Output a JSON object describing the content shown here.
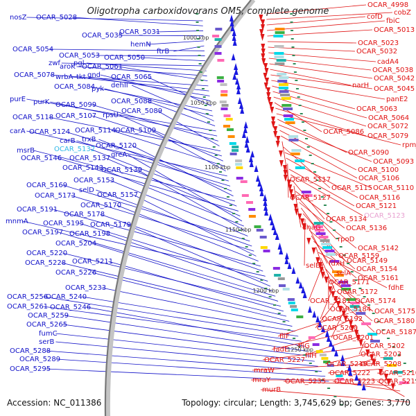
{
  "title": "Oligotropha carboxidovorans OM5, complete genome",
  "footer": {
    "accession": "Accession: NC_011386",
    "topology": "Topology: circular; Length: 3,745,629 bp; Genes: 3,770"
  },
  "colors": {
    "left_genes": "#1010c8",
    "right_genes": "#e01010",
    "highlight_left": "#30b8e8",
    "highlight_right": "#e8a0d0",
    "tick": "#2e8b57"
  },
  "kbp_marks": [
    "1000 kbp",
    "1050 kbp",
    "1100 kbp",
    "1150 kbp",
    "1200 kbp",
    "1250 kbp"
  ],
  "left_labels": [
    {
      "text": "nosZ"
    },
    {
      "text": "OCAR_5028"
    },
    {
      "text": "OCAR_5031"
    },
    {
      "text": "OCAR_5035"
    },
    {
      "text": "hemN"
    },
    {
      "text": "ftrB"
    },
    {
      "text": "OCAR_5054"
    },
    {
      "text": "OCAR_5053"
    },
    {
      "text": "OCAR_5050"
    },
    {
      "text": "zwf"
    },
    {
      "text": "pgl"
    },
    {
      "text": "aroK"
    },
    {
      "text": "OCAR_5061"
    },
    {
      "text": "OCAR_5078"
    },
    {
      "text": "wrbA"
    },
    {
      "text": "tkt"
    },
    {
      "text": "gnd"
    },
    {
      "text": "OCAR_5065"
    },
    {
      "text": "OCAR_5084"
    },
    {
      "text": "pyk"
    },
    {
      "text": "dehII"
    },
    {
      "text": "OCAR_5088"
    },
    {
      "text": "purE"
    },
    {
      "text": "purK"
    },
    {
      "text": "OCAR_5099"
    },
    {
      "text": "OCAR_5089"
    },
    {
      "text": "OCAR_5118"
    },
    {
      "text": "OCAR_5107"
    },
    {
      "text": "rpsU"
    },
    {
      "text": "OCAR_5114"
    },
    {
      "text": "OCAR_5109"
    },
    {
      "text": "carA"
    },
    {
      "text": "OCAR_5124"
    },
    {
      "text": "carB"
    },
    {
      "text": "trxB"
    },
    {
      "text": "OCAR_5120"
    },
    {
      "text": "msrB"
    },
    {
      "text": "OCAR_5132",
      "highlight": true
    },
    {
      "text": "OCAR_5146"
    },
    {
      "text": "OCAR_5137"
    },
    {
      "text": "greA"
    },
    {
      "text": "OCAR_5143"
    },
    {
      "text": "OCAR_5139"
    },
    {
      "text": "OCAR_5153"
    },
    {
      "text": "OCAR_5169"
    },
    {
      "text": "selD"
    },
    {
      "text": "OCAR_5173"
    },
    {
      "text": "OCAR_5157"
    },
    {
      "text": "OCAR_5170"
    },
    {
      "text": "OCAR_5191"
    },
    {
      "text": "OCAR_5178"
    },
    {
      "text": "mnmA"
    },
    {
      "text": "OCAR_5195"
    },
    {
      "text": "OCAR_5179"
    },
    {
      "text": "OCAR_5198"
    },
    {
      "text": "OCAR_5197"
    },
    {
      "text": "OCAR_5204"
    },
    {
      "text": "OCAR_5220"
    },
    {
      "text": "OCAR_5211"
    },
    {
      "text": "OCAR_5228"
    },
    {
      "text": "OCAR_5226"
    },
    {
      "text": "OCAR_5233"
    },
    {
      "text": "OCAR_5240"
    },
    {
      "text": "OCAR_5256"
    },
    {
      "text": "OCAR_5261"
    },
    {
      "text": "OCAR_5246"
    },
    {
      "text": "OCAR_5259"
    },
    {
      "text": "OCAR_5265"
    },
    {
      "text": "fumC"
    },
    {
      "text": "serB"
    },
    {
      "text": "OCAR_5288"
    },
    {
      "text": "OCAR_5289"
    },
    {
      "text": "OCAR_5295"
    }
  ],
  "right_labels": [
    {
      "text": "OCAR_4998"
    },
    {
      "text": "cobZ"
    },
    {
      "text": "cofD"
    },
    {
      "text": "fbiC"
    },
    {
      "text": "OCAR_5013"
    },
    {
      "text": "OCAR_5023"
    },
    {
      "text": "OCAR_5032"
    },
    {
      "text": "cadA4"
    },
    {
      "text": "OCAR_5038"
    },
    {
      "text": "OCAR_5042"
    },
    {
      "text": "narH"
    },
    {
      "text": "OCAR_5045"
    },
    {
      "text": "panE2"
    },
    {
      "text": "OCAR_5063"
    },
    {
      "text": "OCAR_5064"
    },
    {
      "text": "OCAR_5072"
    },
    {
      "text": "OCAR_5086"
    },
    {
      "text": "OCAR_5079"
    },
    {
      "text": "rpmJ"
    },
    {
      "text": "OCAR_5090"
    },
    {
      "text": "OCAR_5093"
    },
    {
      "text": "OCAR_5100"
    },
    {
      "text": "OCAR_5106"
    },
    {
      "text": "OCAR_5117"
    },
    {
      "text": "OCAR_5115"
    },
    {
      "text": "OCAR_5110"
    },
    {
      "text": "OCAR_5116"
    },
    {
      "text": "OCAR_5127"
    },
    {
      "text": "OCAR_5121"
    },
    {
      "text": "OCAR_5123",
      "highlight": true
    },
    {
      "text": "OCAR_5134"
    },
    {
      "text": "dnaG"
    },
    {
      "text": "OCAR_5136"
    },
    {
      "text": "rpoD"
    },
    {
      "text": "OCAR_5142"
    },
    {
      "text": "OCAR_5159"
    },
    {
      "text": "OCAR_5149"
    },
    {
      "text": "selB"
    },
    {
      "text": "fdxH"
    },
    {
      "text": "OCAR_5154"
    },
    {
      "text": "selA"
    },
    {
      "text": "OCAR_5161"
    },
    {
      "text": "OCAR_5171"
    },
    {
      "text": "fdhE"
    },
    {
      "text": "OCAR_5172"
    },
    {
      "text": "OCAR_5181"
    },
    {
      "text": "OCAR_5174"
    },
    {
      "text": "OCAR_5184"
    },
    {
      "text": "OCAR_5175"
    },
    {
      "text": "OCAR_5192"
    },
    {
      "text": "OCAR_5180"
    },
    {
      "text": "OCAR_5200"
    },
    {
      "text": "OCAR_5187"
    },
    {
      "text": "OCAR_5201"
    },
    {
      "text": "fliF"
    },
    {
      "text": "fliG"
    },
    {
      "text": "OCAR_5202"
    },
    {
      "text": "fadE"
    },
    {
      "text": "fliH"
    },
    {
      "text": "OCAR_5203"
    },
    {
      "text": "OCAR_5227"
    },
    {
      "text": "OCAR_5219"
    },
    {
      "text": "OCAR_5208"
    },
    {
      "text": "mraW"
    },
    {
      "text": "OCAR_5222"
    },
    {
      "text": "OCAR_5210"
    },
    {
      "text": "mraY"
    },
    {
      "text": "OCAR_5235"
    },
    {
      "text": "OCAR_5223"
    },
    {
      "text": "OCAR_5215"
    },
    {
      "text": "murB"
    }
  ]
}
